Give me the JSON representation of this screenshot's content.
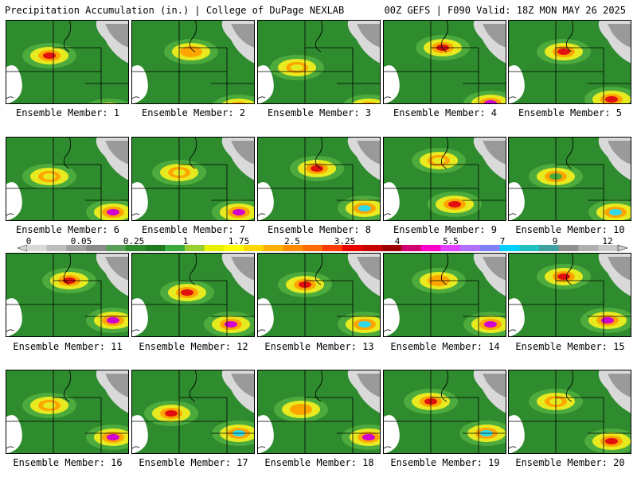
{
  "header": {
    "title": "Precipitation Accumulation (in.) | College of DuPage NEXLAB",
    "valid": "00Z GEFS | F090 Valid: 18Z MON MAY 26 2025"
  },
  "members": [
    {
      "label": "Ensemble Member: 1"
    },
    {
      "label": "Ensemble Member: 2"
    },
    {
      "label": "Ensemble Member: 3"
    },
    {
      "label": "Ensemble Member: 4"
    },
    {
      "label": "Ensemble Member: 5"
    },
    {
      "label": "Ensemble Member: 6"
    },
    {
      "label": "Ensemble Member: 7"
    },
    {
      "label": "Ensemble Member: 8"
    },
    {
      "label": "Ensemble Member: 9"
    },
    {
      "label": "Ensemble Member: 10"
    },
    {
      "label": "Ensemble Member: 11"
    },
    {
      "label": "Ensemble Member: 12"
    },
    {
      "label": "Ensemble Member: 13"
    },
    {
      "label": "Ensemble Member: 14"
    },
    {
      "label": "Ensemble Member: 15"
    },
    {
      "label": "Ensemble Member: 16"
    },
    {
      "label": "Ensemble Member: 17"
    },
    {
      "label": "Ensemble Member: 18"
    },
    {
      "label": "Ensemble Member: 19"
    },
    {
      "label": "Ensemble Member: 20"
    }
  ],
  "colorbar": {
    "ticks": [
      "0",
      "0.05",
      "0.25",
      "1",
      "1.75",
      "2.5",
      "3.25",
      "4",
      "5.5",
      "7",
      "9",
      "12"
    ],
    "colors": [
      "#d9d9d9",
      "#bdbdbd",
      "#a0a0a0",
      "#8a8a8a",
      "#5a9e5a",
      "#2e8b2e",
      "#1f7a1f",
      "#3aa83a",
      "#9acd32",
      "#e6f000",
      "#ffff00",
      "#ffd700",
      "#ffb000",
      "#ff8c00",
      "#ff6a00",
      "#ff3c00",
      "#e80000",
      "#c80000",
      "#a00000",
      "#d00070",
      "#ff00c8",
      "#e040ff",
      "#b070ff",
      "#8080ff",
      "#00d0ff",
      "#20c0c0",
      "#40a0a0",
      "#909090",
      "#b0b0b0",
      "#c8c8c8"
    ]
  },
  "palette": {
    "no_precip": "#ffffff",
    "trace_light": "#d9d9d9",
    "trace_dark": "#9a9a9a",
    "green": "#2e8b2e",
    "green_light": "#4cab3c",
    "yellow": "#e8ea20",
    "orange": "#ffa500",
    "red": "#e01010",
    "magenta": "#d000d0",
    "cyan": "#30d8e8",
    "boundaries": "#000000"
  }
}
